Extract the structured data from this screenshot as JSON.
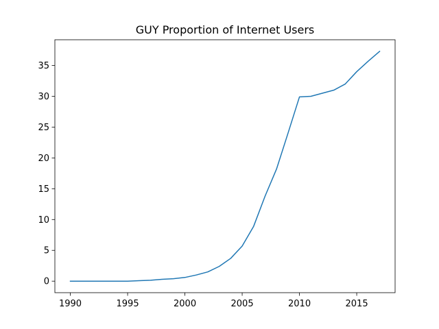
{
  "chart_data": {
    "type": "line",
    "title": "GUY Proportion of Internet Users",
    "xlabel": "",
    "ylabel": "",
    "xlim": [
      1988.65,
      2018.35
    ],
    "ylim": [
      -1.87,
      39.18
    ],
    "xticks": [
      1990,
      1995,
      2000,
      2005,
      2010,
      2015
    ],
    "yticks": [
      0,
      5,
      10,
      15,
      20,
      25,
      30,
      35
    ],
    "grid": false,
    "series": [
      {
        "color": "#1f77b4",
        "x": [
          1990,
          1991,
          1992,
          1993,
          1994,
          1995,
          1996,
          1997,
          1998,
          1999,
          2000,
          2001,
          2002,
          2003,
          2004,
          2005,
          2006,
          2007,
          2008,
          2009,
          2010,
          2011,
          2012,
          2013,
          2014,
          2015,
          2016,
          2017
        ],
        "y": [
          0,
          0,
          0,
          0,
          0,
          0,
          0.07,
          0.15,
          0.3,
          0.4,
          0.6,
          1.0,
          1.5,
          2.4,
          3.7,
          5.7,
          8.9,
          13.8,
          18.2,
          24.0,
          29.9,
          30.0,
          30.5,
          31.0,
          32.0,
          34.0,
          35.7,
          37.3
        ]
      }
    ]
  }
}
